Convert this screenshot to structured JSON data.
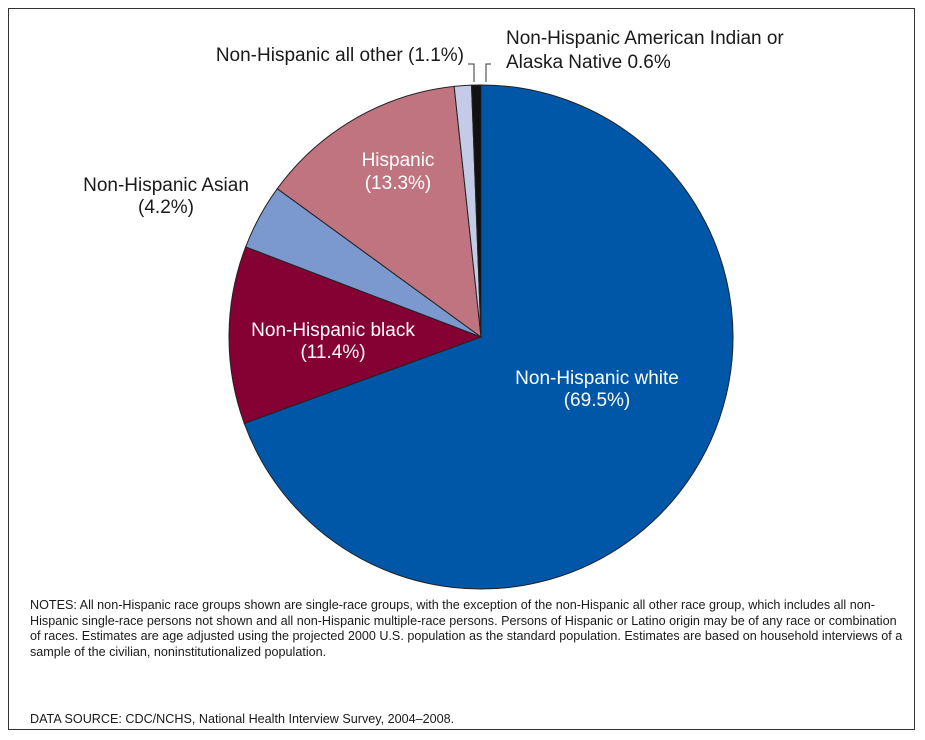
{
  "chart_data": {
    "type": "pie",
    "slices": [
      {
        "name": "Non-Hispanic white",
        "value": 69.5,
        "value_label": "(69.5%)",
        "color": "#0057a8"
      },
      {
        "name": "Non-Hispanic black",
        "value": 11.4,
        "value_label": "(11.4%)",
        "color": "#850033"
      },
      {
        "name": "Non-Hispanic Asian",
        "value": 4.2,
        "value_label": "(4.2%)",
        "color": "#7b98cf"
      },
      {
        "name": "Hispanic",
        "value": 13.3,
        "value_label": "(13.3%)",
        "color": "#c07480"
      },
      {
        "name": "Non-Hispanic all other",
        "value": 1.1,
        "value_label": "(1.1%)",
        "color": "#c3cbe6"
      },
      {
        "name": "Non-Hispanic American Indian or Alaska Native",
        "value": 0.6,
        "value_label": "0.6%",
        "color": "#111111"
      }
    ],
    "labels": {
      "white": {
        "line1": "Non-Hispanic white",
        "line2": "(69.5%)"
      },
      "black": {
        "line1": "Non-Hispanic black",
        "line2": "(11.4%)"
      },
      "asian": {
        "line1": "Non-Hispanic Asian",
        "line2": "(4.2%)"
      },
      "hispanic": {
        "line1": "Hispanic",
        "line2": "(13.3%)"
      },
      "other": {
        "line1": "Non-Hispanic all other (1.1%)"
      },
      "aian": {
        "line1": "Non-Hispanic American Indian or",
        "line2": "Alaska Native 0.6%"
      }
    }
  },
  "notes": "NOTES: All non-Hispanic race groups shown are single-race groups, with the exception of the non-Hispanic all other race group, which includes all non-Hispanic single-race persons not shown and all non-Hispanic multiple-race persons. Persons of Hispanic or Latino origin may be of any race or combination of races.  Estimates are age adjusted using the projected 2000 U.S. population as the standard population. Estimates are based on household interviews of a sample of the civilian, noninstitutionalized population.",
  "data_source": "DATA SOURCE: CDC/NCHS, National Health Interview Survey, 2004–2008."
}
